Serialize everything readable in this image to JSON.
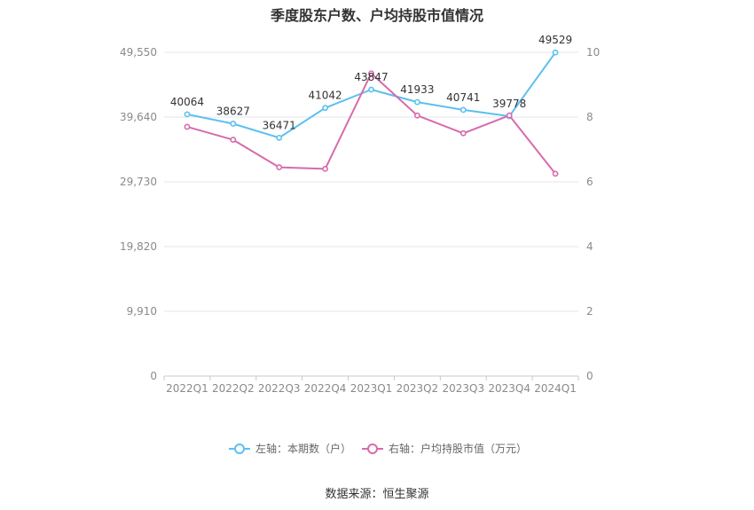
{
  "title": "季度股东户数、户均持股市值情况",
  "source": "数据来源：恒生聚源",
  "chart_data": {
    "type": "line",
    "categories": [
      "2022Q1",
      "2022Q2",
      "2022Q3",
      "2022Q4",
      "2023Q1",
      "2023Q2",
      "2023Q3",
      "2023Q4",
      "2024Q1"
    ],
    "left_axis": {
      "ylim": [
        0,
        49550
      ],
      "ticks": [
        "0",
        "9,910",
        "19,820",
        "29,730",
        "39,640",
        "49,550"
      ]
    },
    "right_axis": {
      "ylim": [
        0,
        10
      ],
      "ticks": [
        "0",
        "2",
        "4",
        "6",
        "8",
        "10"
      ]
    },
    "grid": true,
    "legend_position": "bottom",
    "series": [
      {
        "name": "左轴：本期数（户）",
        "axis": "left",
        "color": "#5bc0ef",
        "values": [
          40064,
          38627,
          36471,
          41042,
          43847,
          41933,
          40741,
          39778,
          49529
        ],
        "labels": [
          "40064",
          "38627",
          "36471",
          "41042",
          "43847",
          "41933",
          "40741",
          "39778",
          "49529"
        ]
      },
      {
        "name": "右轴：户均持股市值（万元）",
        "axis": "right",
        "color": "#d76bac",
        "values": [
          7.7,
          7.3,
          6.45,
          6.4,
          9.35,
          8.05,
          7.5,
          8.05,
          6.25
        ]
      }
    ]
  }
}
